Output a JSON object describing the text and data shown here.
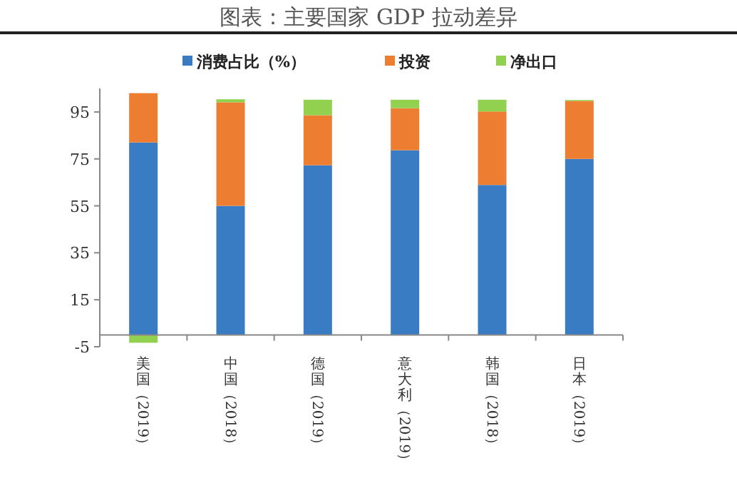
{
  "chart_data": {
    "type": "bar",
    "title": "图表：主要国家 GDP 拉动差异",
    "stacked": true,
    "categories": [
      "美国（2019）",
      "中国（2018）",
      "德国（2019）",
      "意大利（2019）",
      "韩国（2018）",
      "日本（2019）"
    ],
    "series": [
      {
        "name": "消费占比（%）",
        "color": "#3a7cc4",
        "values": [
          82,
          55,
          72.3,
          78.7,
          63.9,
          75
        ]
      },
      {
        "name": "投资",
        "color": "#ed7d31",
        "values": [
          21,
          44.1,
          21.3,
          17.9,
          31.3,
          24.7
        ]
      },
      {
        "name": "净出口",
        "color": "#92d050",
        "values": [
          -3.3,
          1.3,
          6.6,
          3.6,
          5,
          0.4
        ]
      }
    ],
    "ylim": [
      -5,
      105
    ],
    "yticks": [
      -5,
      15,
      35,
      55,
      75,
      95
    ],
    "grid": false,
    "legend": "top"
  }
}
